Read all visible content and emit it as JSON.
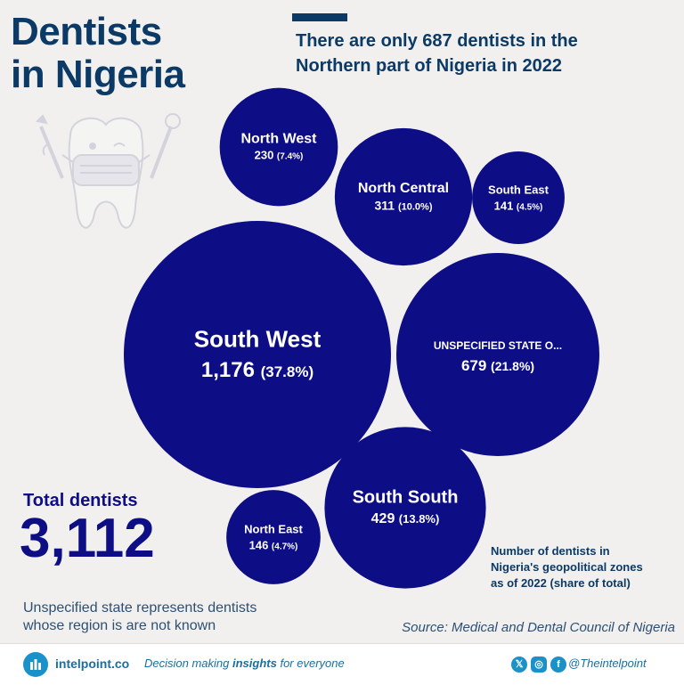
{
  "header": {
    "title_line1": "Dentists",
    "title_line2": "in Nigeria",
    "subtitle_line1": "There are only 687 dentists in the",
    "subtitle_line2": "Northern part of Nigeria in 2022"
  },
  "chart_data": {
    "type": "bubble",
    "caption": [
      "Number of dentists in",
      "Nigeria's geopolitical zones",
      "as of 2022 (share of total)"
    ],
    "series": [
      {
        "name": "North West",
        "value": 230,
        "value_label": "230",
        "share": "(7.4%)"
      },
      {
        "name": "North Central",
        "value": 311,
        "value_label": "311",
        "share": "(10.0%)"
      },
      {
        "name": "South East",
        "value": 141,
        "value_label": "141",
        "share": "(4.5%)"
      },
      {
        "name": "South West",
        "value": 1176,
        "value_label": "1,176",
        "share": "(37.8%)"
      },
      {
        "name": "UNSPECIFIED STATE O...",
        "value": 679,
        "value_label": "679",
        "share": "(21.8%)"
      },
      {
        "name": "North East",
        "value": 146,
        "value_label": "146",
        "share": "(4.7%)"
      },
      {
        "name": "South South",
        "value": 429,
        "value_label": "429",
        "share": "(13.8%)"
      }
    ],
    "bubble_color": "#0d0d85"
  },
  "summary": {
    "total_label": "Total dentists",
    "total_value": "3,112"
  },
  "note": {
    "line1": "Unspecified state represents dentists",
    "line2": "whose region is are not known"
  },
  "source": "Source: Medical and Dental Council of Nigeria",
  "footer": {
    "brand": "intelpoint.co",
    "tagline_pre": "Decision making ",
    "tagline_bold": "insights",
    "tagline_post": " for everyone",
    "handle": "@Theintelpoint",
    "social_icons": [
      "x-icon",
      "instagram-icon",
      "facebook-icon"
    ]
  }
}
